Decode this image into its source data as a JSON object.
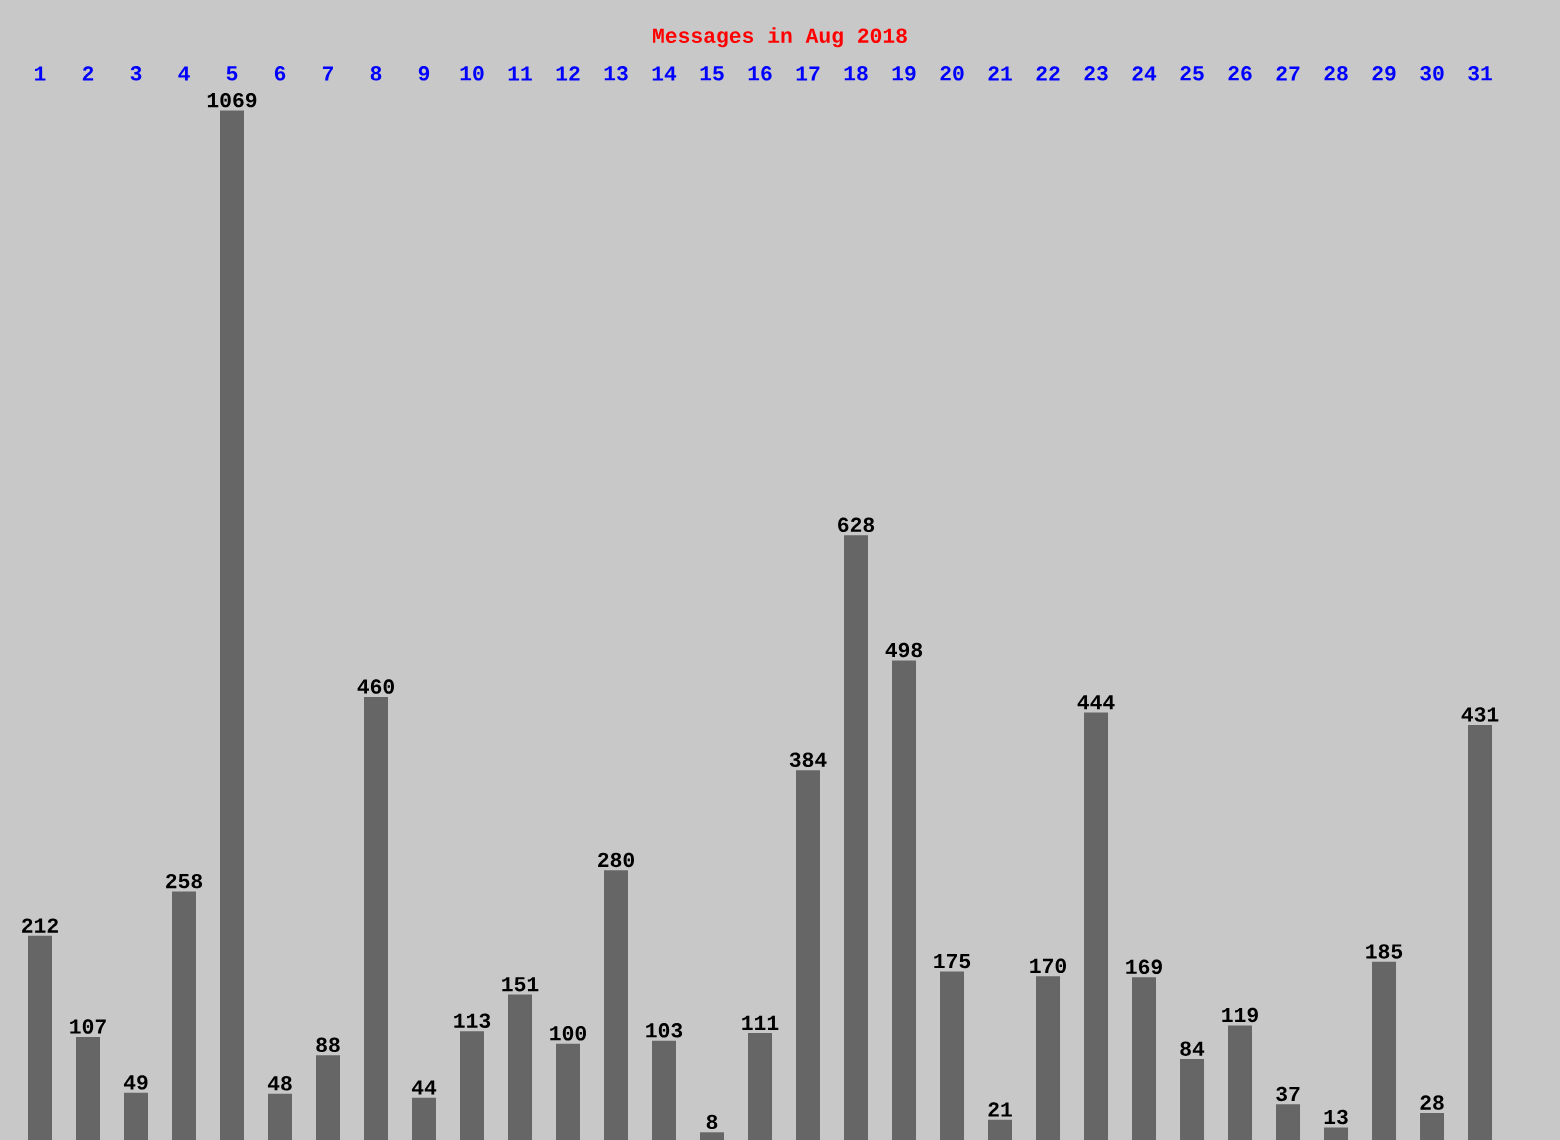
{
  "chart_data": {
    "type": "bar",
    "title": "Messages in Aug 2018",
    "categories": [
      "1",
      "2",
      "3",
      "4",
      "5",
      "6",
      "7",
      "8",
      "9",
      "10",
      "11",
      "12",
      "13",
      "14",
      "15",
      "16",
      "17",
      "18",
      "19",
      "20",
      "21",
      "22",
      "23",
      "24",
      "25",
      "26",
      "27",
      "28",
      "29",
      "30",
      "31"
    ],
    "values": [
      212,
      107,
      49,
      258,
      1069,
      48,
      88,
      460,
      44,
      113,
      151,
      100,
      280,
      103,
      8,
      111,
      384,
      628,
      498,
      175,
      21,
      170,
      444,
      169,
      84,
      119,
      37,
      13,
      185,
      28,
      431
    ],
    "color": "#666666",
    "data_labels": true
  }
}
